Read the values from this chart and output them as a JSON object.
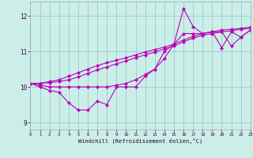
{
  "title": "",
  "xlabel": "Windchill (Refroidissement éolien,°C)",
  "xlim": [
    0,
    23
  ],
  "ylim": [
    8.8,
    12.4
  ],
  "yticks": [
    9,
    10,
    11,
    12
  ],
  "xticks": [
    0,
    1,
    2,
    3,
    4,
    5,
    6,
    7,
    8,
    9,
    10,
    11,
    12,
    13,
    14,
    15,
    16,
    17,
    18,
    19,
    20,
    21,
    22,
    23
  ],
  "bg_color": "#cceee8",
  "line_color": "#bb00bb",
  "grid_color": "#99cccc",
  "series_jagged": [
    10.1,
    10.0,
    9.9,
    9.85,
    9.55,
    9.35,
    9.35,
    9.6,
    9.5,
    10.0,
    10.0,
    10.0,
    10.3,
    10.5,
    11.0,
    11.2,
    12.2,
    11.7,
    11.5,
    11.55,
    11.1,
    11.55,
    11.4,
    11.6
  ],
  "series_upper": [
    10.1,
    10.05,
    10.0,
    10.0,
    10.0,
    10.0,
    10.0,
    10.0,
    10.0,
    10.05,
    10.1,
    10.2,
    10.35,
    10.5,
    10.8,
    11.2,
    11.5,
    11.5,
    11.5,
    11.55,
    11.55,
    11.15,
    11.4,
    11.6
  ],
  "series_trend1": [
    10.1,
    10.1,
    10.15,
    10.2,
    10.3,
    10.4,
    10.5,
    10.6,
    10.68,
    10.75,
    10.82,
    10.9,
    10.98,
    11.05,
    11.12,
    11.2,
    11.32,
    11.42,
    11.5,
    11.55,
    11.6,
    11.62,
    11.65,
    11.68
  ],
  "series_trend2": [
    10.1,
    10.1,
    10.12,
    10.15,
    10.2,
    10.28,
    10.38,
    10.48,
    10.56,
    10.65,
    10.73,
    10.82,
    10.9,
    10.98,
    11.07,
    11.15,
    11.27,
    11.37,
    11.45,
    11.5,
    11.55,
    11.58,
    11.62,
    11.65
  ]
}
